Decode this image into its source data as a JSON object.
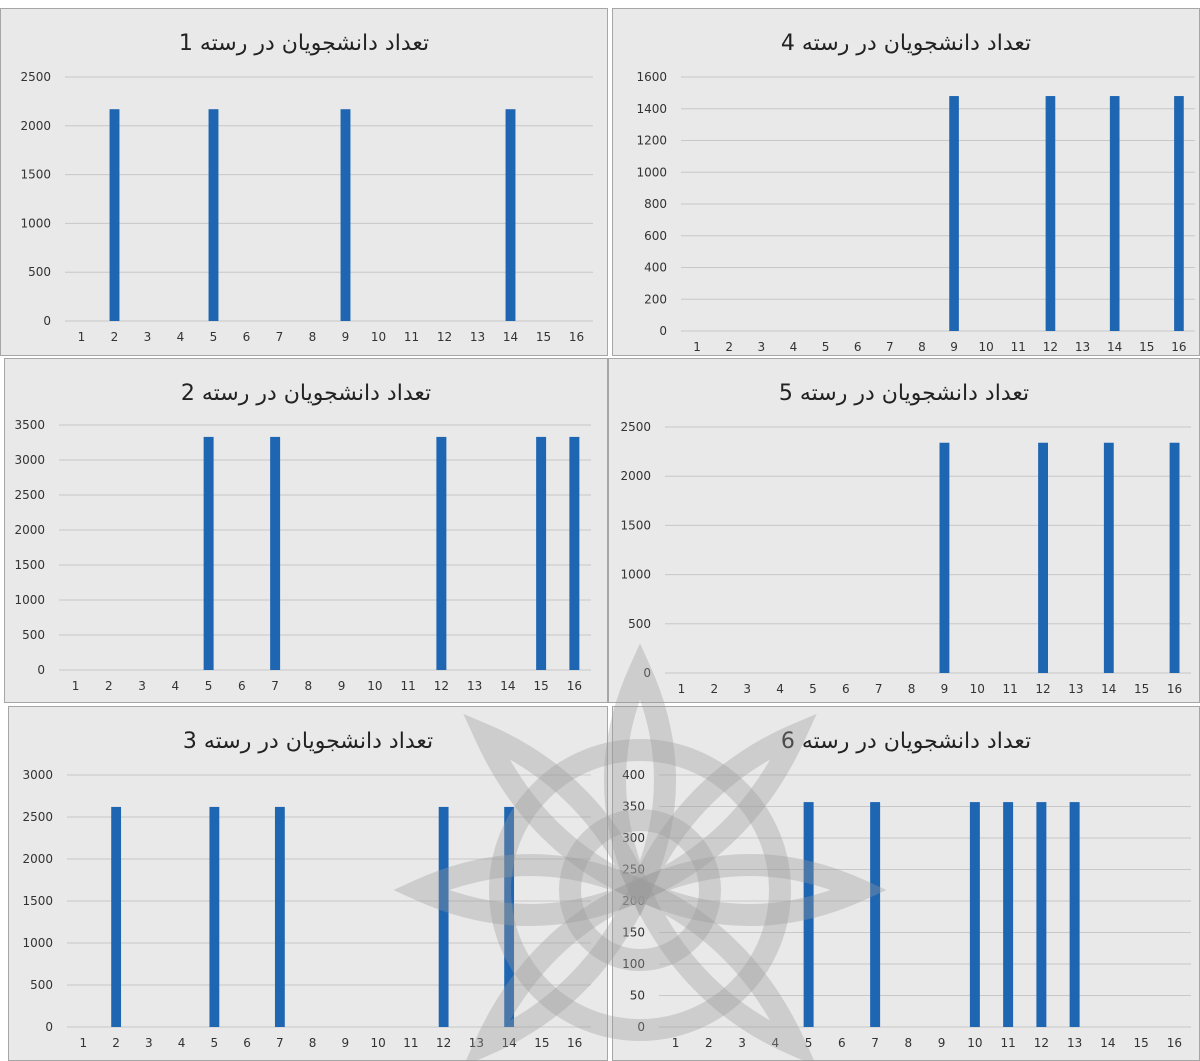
{
  "colors": {
    "bar": "#1f66b2",
    "grid": "#c8c8c8",
    "panel_bg": "#e9e9e9",
    "axis_text": "#333333"
  },
  "chart_data": [
    {
      "type": "bar",
      "title": "تعداد دانشجویان در رسته 1",
      "categories": [
        "1",
        "2",
        "3",
        "4",
        "5",
        "6",
        "7",
        "8",
        "9",
        "10",
        "11",
        "12",
        "13",
        "14",
        "15",
        "16"
      ],
      "values": [
        0,
        2170,
        0,
        0,
        2170,
        0,
        0,
        0,
        2170,
        0,
        0,
        0,
        0,
        2170,
        0,
        0
      ],
      "yticks": [
        "0",
        "500",
        "1000",
        "1500",
        "2000",
        "2500"
      ],
      "ylim": [
        0,
        2500
      ],
      "grid": true
    },
    {
      "type": "bar",
      "title": "تعداد دانشجویان در رسته 4",
      "categories": [
        "1",
        "2",
        "3",
        "4",
        "5",
        "6",
        "7",
        "8",
        "9",
        "10",
        "11",
        "12",
        "13",
        "14",
        "15",
        "16"
      ],
      "values": [
        0,
        0,
        0,
        0,
        0,
        0,
        0,
        0,
        1480,
        0,
        0,
        1480,
        0,
        1480,
        0,
        1480
      ],
      "yticks": [
        "0",
        "200",
        "400",
        "600",
        "800",
        "1000",
        "1200",
        "1400",
        "1600"
      ],
      "ylim": [
        0,
        1600
      ],
      "grid": true
    },
    {
      "type": "bar",
      "title": "تعداد دانشجویان در رسته 2",
      "categories": [
        "1",
        "2",
        "3",
        "4",
        "5",
        "6",
        "7",
        "8",
        "9",
        "10",
        "11",
        "12",
        "13",
        "14",
        "15",
        "16"
      ],
      "values": [
        0,
        0,
        0,
        0,
        3330,
        0,
        3330,
        0,
        0,
        0,
        0,
        3330,
        0,
        0,
        3330,
        3330
      ],
      "yticks": [
        "0",
        "500",
        "1000",
        "1500",
        "2000",
        "2500",
        "3000",
        "3500"
      ],
      "ylim": [
        0,
        3500
      ],
      "grid": true
    },
    {
      "type": "bar",
      "title": "تعداد دانشجویان در رسته 5",
      "categories": [
        "1",
        "2",
        "3",
        "4",
        "5",
        "6",
        "7",
        "8",
        "9",
        "10",
        "11",
        "12",
        "13",
        "14",
        "15",
        "16"
      ],
      "values": [
        0,
        0,
        0,
        0,
        0,
        0,
        0,
        0,
        2340,
        0,
        0,
        2340,
        0,
        2340,
        0,
        2340
      ],
      "yticks": [
        "0",
        "500",
        "1000",
        "1500",
        "2000",
        "2500"
      ],
      "ylim": [
        0,
        2500
      ],
      "grid": true
    },
    {
      "type": "bar",
      "title": "تعداد دانشجویان در رسته 3",
      "categories": [
        "1",
        "2",
        "3",
        "4",
        "5",
        "6",
        "7",
        "8",
        "9",
        "10",
        "11",
        "12",
        "13",
        "14",
        "15",
        "16"
      ],
      "values": [
        0,
        2620,
        0,
        0,
        2620,
        0,
        2620,
        0,
        0,
        0,
        0,
        2620,
        0,
        2620,
        0,
        0
      ],
      "yticks": [
        "0",
        "500",
        "1000",
        "1500",
        "2000",
        "2500",
        "3000"
      ],
      "ylim": [
        0,
        3000
      ],
      "grid": true
    },
    {
      "type": "bar",
      "title": "تعداد دانشجویان در رسته 6",
      "categories": [
        "1",
        "2",
        "3",
        "4",
        "5",
        "6",
        "7",
        "8",
        "9",
        "10",
        "11",
        "12",
        "13",
        "14",
        "15",
        "16"
      ],
      "values": [
        0,
        0,
        0,
        0,
        357,
        0,
        357,
        0,
        0,
        357,
        357,
        357,
        357,
        0,
        0,
        0
      ],
      "yticks": [
        "0",
        "50",
        "100",
        "150",
        "200",
        "250",
        "300",
        "350",
        "400"
      ],
      "ylim": [
        0,
        400
      ],
      "grid": true
    }
  ]
}
